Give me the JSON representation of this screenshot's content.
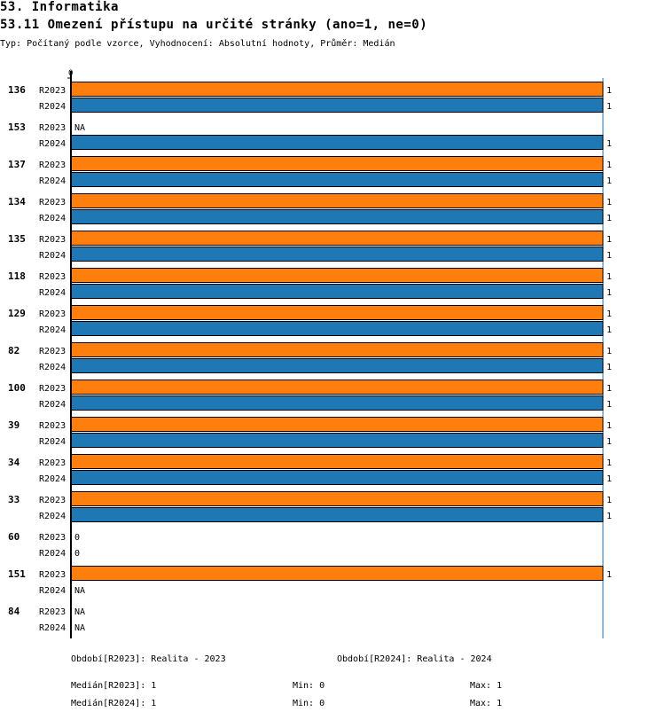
{
  "header": {
    "section": "53. Informatika",
    "title": "53.11 Omezení přístupu na určité stránky (ano=1, ne=0)",
    "subtitle": "Typ: Počítaný podle vzorce, Vyhodnocení: Absolutní hodnoty, Průměr: Medián"
  },
  "chart_data": {
    "type": "bar",
    "orientation": "horizontal",
    "xlim": [
      0,
      1
    ],
    "x_tick_labels": [
      "0"
    ],
    "categories": [
      "136",
      "153",
      "137",
      "134",
      "135",
      "118",
      "129",
      "82",
      "100",
      "39",
      "34",
      "33",
      "60",
      "151",
      "84"
    ],
    "series": [
      {
        "name": "R2023",
        "color": "#ff7f0e",
        "values": [
          1,
          null,
          1,
          1,
          1,
          1,
          1,
          1,
          1,
          1,
          1,
          1,
          0,
          1,
          null
        ]
      },
      {
        "name": "R2024",
        "color": "#1f77b4",
        "values": [
          1,
          1,
          1,
          1,
          1,
          1,
          1,
          1,
          1,
          1,
          1,
          1,
          0,
          null,
          null
        ]
      }
    ],
    "missing_label": "NA"
  },
  "footer": {
    "period_2023": "Období[R2023]: Realita - 2023",
    "period_2024": "Období[R2024]: Realita - 2024",
    "median_2023": "Medián[R2023]: 1",
    "min_2023": "Min: 0",
    "max_2023": "Max: 1",
    "median_2024": "Medián[R2024]: 1",
    "min_2024": "Min: 0",
    "max_2024": "Max: 1"
  }
}
